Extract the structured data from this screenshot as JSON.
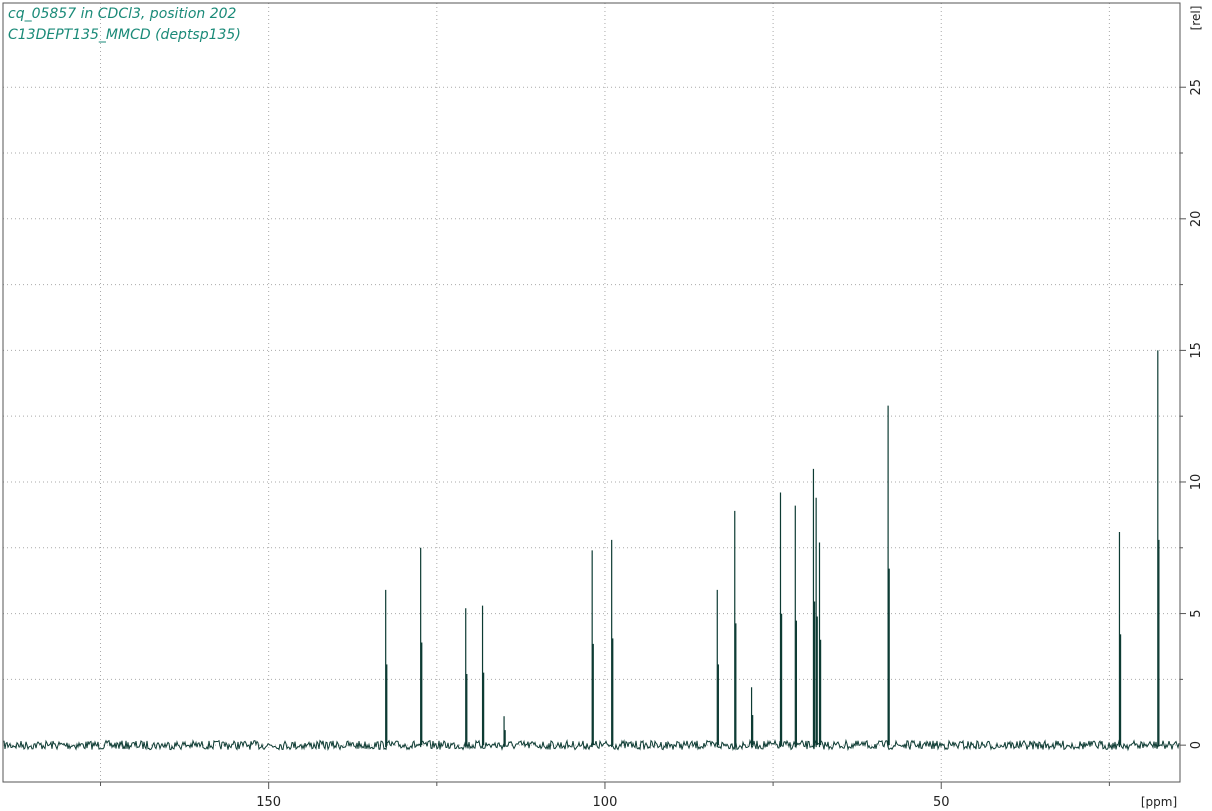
{
  "chart_data": {
    "type": "line",
    "title": "cq_05857 in CDCl3, position 202",
    "subtitle": "C13DEPT135_MMCD (deptsp135)",
    "xlabel": "[ppm]",
    "ylabel": "[rel]",
    "x_reversed": true,
    "xlim": [
      189.5,
      14.5
    ],
    "ylim": [
      -1.4,
      28.2
    ],
    "x_ticks": [
      150,
      100,
      50
    ],
    "x_minor_ticks": [
      175,
      125,
      75,
      25
    ],
    "y_ticks": [
      0,
      5,
      10,
      15,
      20,
      25
    ],
    "y_minor_ticks": [
      2.5,
      7.5,
      12.5,
      17.5,
      22.5
    ],
    "grid": true,
    "baseline": 0,
    "line_color": "#0d3b33",
    "peaks": [
      {
        "x": 132.6,
        "y": 5.9
      },
      {
        "x": 127.4,
        "y": 7.5
      },
      {
        "x": 120.7,
        "y": 5.2
      },
      {
        "x": 118.2,
        "y": 5.3
      },
      {
        "x": 115.0,
        "y": 1.1
      },
      {
        "x": 101.9,
        "y": 7.4
      },
      {
        "x": 99.0,
        "y": 7.8
      },
      {
        "x": 83.3,
        "y": 5.9
      },
      {
        "x": 80.7,
        "y": 8.9
      },
      {
        "x": 78.2,
        "y": 2.2
      },
      {
        "x": 73.9,
        "y": 9.6
      },
      {
        "x": 71.7,
        "y": 9.1
      },
      {
        "x": 69.0,
        "y": 10.5
      },
      {
        "x": 68.6,
        "y": 9.4
      },
      {
        "x": 68.1,
        "y": 7.7
      },
      {
        "x": 57.9,
        "y": 12.9
      },
      {
        "x": 23.5,
        "y": 8.1
      },
      {
        "x": 17.8,
        "y": 15.0
      }
    ]
  }
}
